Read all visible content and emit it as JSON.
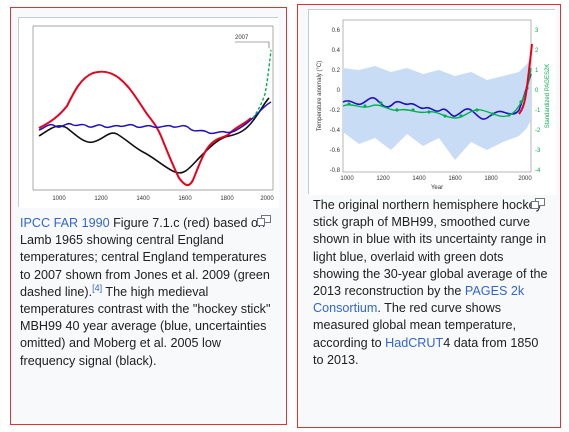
{
  "left_panel": {
    "inset_label": "2007",
    "x_ticks": [
      "1000",
      "1200",
      "1400",
      "1600",
      "1800",
      "2000"
    ],
    "caption": {
      "link_text": "IPCC FAR 1990",
      "text_1": " Figure 7.1.c (red) based on Lamb 1965 showing central England temperatures; central England temperatures to 2007 shown from Jones et al. 2009 (green dashed line).",
      "ref": "[4]",
      "text_2": " The high medieval temperatures contrast with the \"hockey stick\" MBH99 40 year average (blue, uncertainties omitted) and Moberg et al. 2005 low frequency signal (black)."
    }
  },
  "right_panel": {
    "y_axis_label": "Temperature anomaly (°C)",
    "y_axis_label_right": "Standardized PAGES2K",
    "x_axis_label": "Year",
    "y_ticks_left": [
      "0.6",
      "0.4",
      "0.2",
      "0",
      "-0.2",
      "-0.4",
      "-0.6",
      "-0.8"
    ],
    "y_ticks_right": [
      "3",
      "2",
      "1",
      "0",
      "-1",
      "-2",
      "-3",
      "-4"
    ],
    "x_ticks": [
      "1000",
      "1200",
      "1400",
      "1600",
      "1800",
      "2000"
    ],
    "caption": {
      "text_1": "The original northern hemisphere hockey stick graph of MBH99, smoothed curve shown in blue with its uncertainty range in light blue, overlaid with green dots showing the 30-year global average of the 2013 reconstruction by the ",
      "link_1": "PAGES 2k Consortium",
      "text_2": ". The red curve shows measured global mean temperature, according to ",
      "link_2": "HadCRUT",
      "text_3": "4 data from 1850 to 2013."
    }
  },
  "colors": {
    "link": "#3366cc",
    "red_curve": "#e8001c",
    "blue_curve": "#2010c0",
    "black_curve": "#111111",
    "green_curve": "#00b050",
    "uncertainty_band": "#c9dcf5"
  },
  "icons": {
    "magnify": "magnify-icon"
  }
}
